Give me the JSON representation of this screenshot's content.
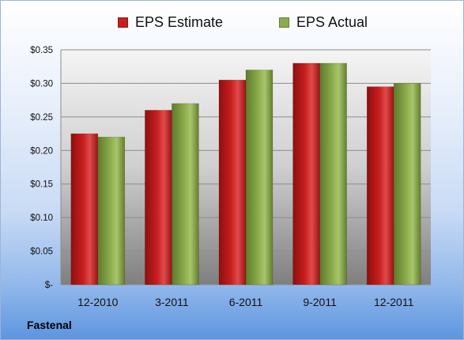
{
  "legend": {
    "estimate_label": "EPS Estimate",
    "actual_label": "EPS Actual"
  },
  "footer": {
    "company": "Fastenal"
  },
  "colors": {
    "estimate": "#c81e1e",
    "actual": "#8aab4a",
    "plot_top": "#f4f4f4",
    "plot_bottom": "#7f7f7f",
    "gridline": "#8c8c8c"
  },
  "chart_data": {
    "type": "bar",
    "categories": [
      "12-2010",
      "3-2011",
      "6-2011",
      "9-2011",
      "12-2011"
    ],
    "series": [
      {
        "name": "EPS Estimate",
        "values": [
          0.225,
          0.26,
          0.305,
          0.33,
          0.295
        ]
      },
      {
        "name": "EPS Actual",
        "values": [
          0.22,
          0.27,
          0.32,
          0.33,
          0.3
        ]
      }
    ],
    "ylim": [
      0,
      0.35
    ],
    "y_ticks": [
      0,
      0.05,
      0.1,
      0.15,
      0.2,
      0.25,
      0.3,
      0.35
    ],
    "y_tick_labels": [
      "$-",
      "$0.05",
      "$0.10",
      "$0.15",
      "$0.20",
      "$0.25",
      "$0.30",
      "$0.35"
    ],
    "grid": true,
    "legend_position": "top"
  }
}
